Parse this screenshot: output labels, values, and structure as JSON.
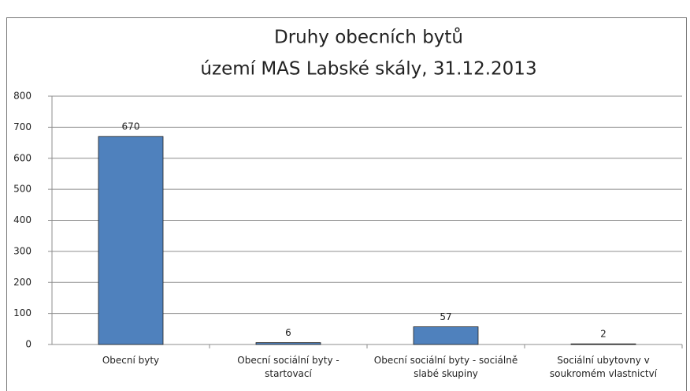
{
  "chart_data": {
    "type": "bar",
    "title": "Druhy obecních bytů",
    "subtitle": "území MAS Labské skály, 31.12.2013",
    "categories": [
      "Obecní byty",
      "Obecní sociální byty - startovací",
      "Obecní sociální byty - sociálně slabé skupiny",
      "Sociální ubytovny v soukromém vlastnictví"
    ],
    "values": [
      670,
      6,
      57,
      2
    ],
    "color": "#4f81bd",
    "ylim": [
      0,
      800
    ],
    "yticks": [
      0,
      100,
      200,
      300,
      400,
      500,
      600,
      700,
      800
    ],
    "grid": true
  }
}
